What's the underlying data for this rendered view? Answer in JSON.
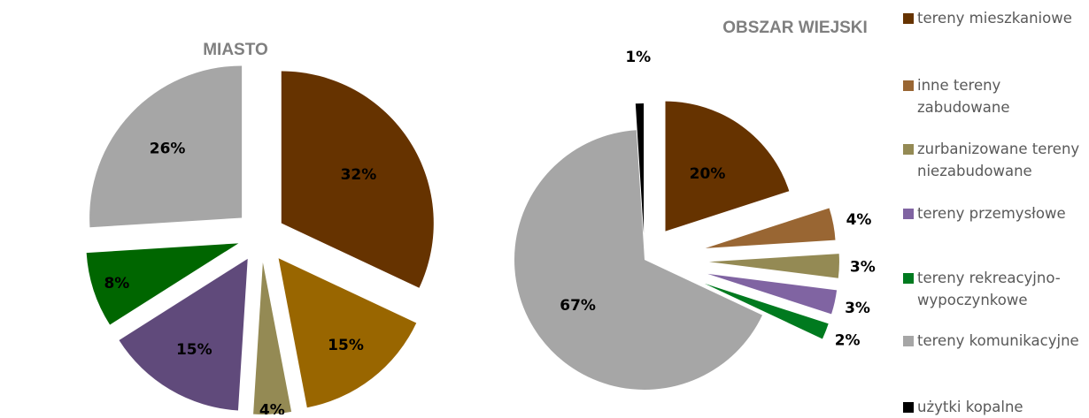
{
  "chart_data": [
    {
      "type": "pie",
      "title": "MIASTO",
      "categories": [
        "tereny mieszkaniowe",
        "inne tereny zabudowane",
        "zurbanizowane tereny niezabudowane",
        "tereny przemysłowe",
        "tereny rekreacyjno-wypoczynkowe",
        "tereny komunikacyjne"
      ],
      "values": [
        32,
        15,
        4,
        15,
        8,
        26
      ],
      "labels": [
        "32%",
        "15%",
        "4%",
        "15%",
        "8%",
        "26%"
      ],
      "colors": [
        "#663300",
        "#996600",
        "#948A54",
        "#604A7B",
        "#006600",
        "#A6A6A6"
      ]
    },
    {
      "type": "pie",
      "title": "OBSZAR WIEJSKI",
      "categories": [
        "tereny mieszkaniowe",
        "inne tereny zabudowane",
        "zurbanizowane tereny niezabudowane",
        "tereny przemysłowe",
        "tereny rekreacyjno-wypoczynkowe",
        "tereny komunikacyjne",
        "użytki kopalne"
      ],
      "values": [
        20,
        4,
        3,
        3,
        2,
        67,
        1
      ],
      "labels": [
        "20%",
        "4%",
        "3%",
        "3%",
        "2%",
        "67%",
        "1%"
      ],
      "colors": [
        "#663300",
        "#996633",
        "#948A54",
        "#8064A2",
        "#007A1F",
        "#A6A6A6",
        "#000000"
      ]
    }
  ],
  "legend": {
    "placement": "right",
    "items": [
      {
        "label": "tereny mieszkaniowe",
        "color": "#663300"
      },
      {
        "label": "inne tereny zabudowane",
        "color": "#996633"
      },
      {
        "label": "zurbanizowane tereny niezabudowane",
        "color": "#948A54"
      },
      {
        "label": "tereny przemysłowe",
        "color": "#8064A2"
      },
      {
        "label": "tereny rekreacyjno-wypoczynkowe",
        "color": "#007A1F"
      },
      {
        "label": "tereny komunikacyjne",
        "color": "#A6A6A6"
      },
      {
        "label": "użytki kopalne",
        "color": "#000000"
      }
    ]
  }
}
